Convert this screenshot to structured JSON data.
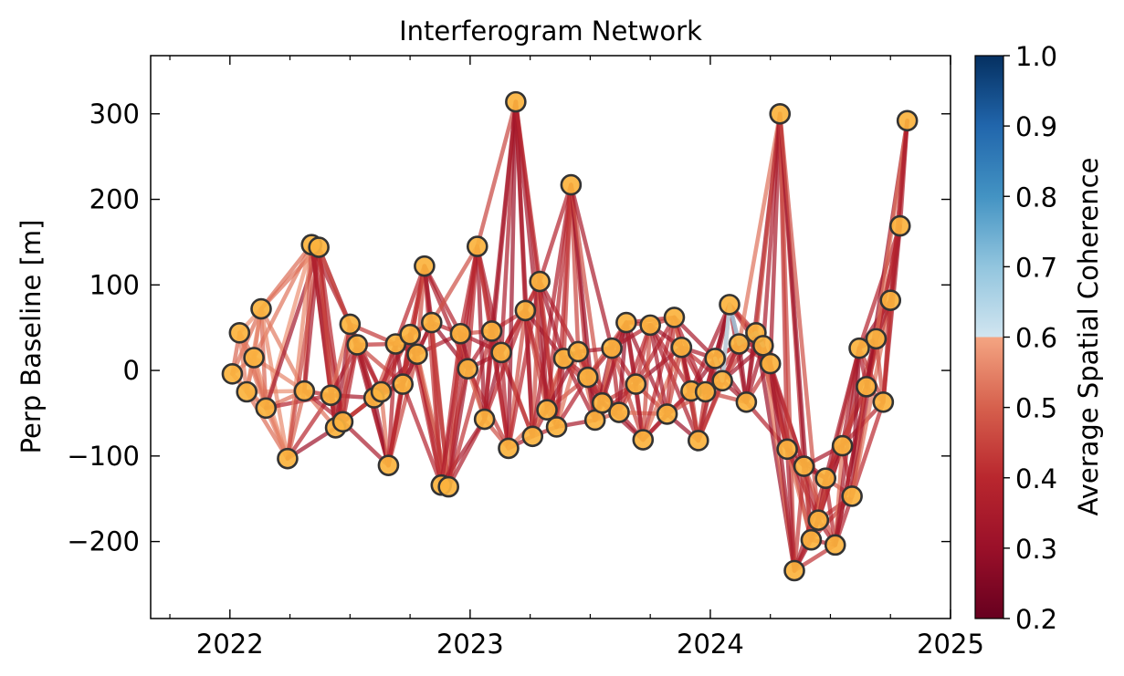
{
  "chart_data": {
    "type": "scatter",
    "title": "Interferogram Network",
    "xlabel": "",
    "ylabel": "Perp Baseline [m]",
    "xlim": [
      2021.67,
      2025.0
    ],
    "ylim": [
      -290,
      368
    ],
    "xticks": [
      2022,
      2023,
      2024,
      2025
    ],
    "yticks": [
      -200,
      -100,
      0,
      100,
      200,
      300
    ],
    "ytick_labels": [
      "−200",
      "−100",
      "0",
      "100",
      "200",
      "300"
    ],
    "grid": false,
    "colorbar": {
      "label": "Average Spatial Coherence",
      "range": [
        0.2,
        1.0
      ],
      "ticks": [
        "0.2",
        "0.3",
        "0.4",
        "0.5",
        "0.6",
        "0.7",
        "0.8",
        "0.9",
        "1.0"
      ],
      "colormap": "RdBu",
      "display_gap": [
        0.7,
        1.0
      ],
      "colors": {
        "low": "#67001f",
        "mid": "#b2182b",
        "pink": "#f4a582",
        "light_blue": "#d1e5f0",
        "blue": "#4393c3",
        "high": "#053061"
      }
    },
    "marker": {
      "fill": "#fbb33e",
      "edge": "#333333"
    },
    "acquisitions": [
      {
        "t": 2022.01,
        "b": -4
      },
      {
        "t": 2022.04,
        "b": 44
      },
      {
        "t": 2022.07,
        "b": -25
      },
      {
        "t": 2022.1,
        "b": 15
      },
      {
        "t": 2022.13,
        "b": 72
      },
      {
        "t": 2022.15,
        "b": -44
      },
      {
        "t": 2022.24,
        "b": -103
      },
      {
        "t": 2022.31,
        "b": -24
      },
      {
        "t": 2022.34,
        "b": 147
      },
      {
        "t": 2022.37,
        "b": 144
      },
      {
        "t": 2022.42,
        "b": -29
      },
      {
        "t": 2022.44,
        "b": -67
      },
      {
        "t": 2022.47,
        "b": -60
      },
      {
        "t": 2022.5,
        "b": 54
      },
      {
        "t": 2022.53,
        "b": 30
      },
      {
        "t": 2022.6,
        "b": -32
      },
      {
        "t": 2022.63,
        "b": -25
      },
      {
        "t": 2022.66,
        "b": -111
      },
      {
        "t": 2022.69,
        "b": 31
      },
      {
        "t": 2022.72,
        "b": -16
      },
      {
        "t": 2022.75,
        "b": 42
      },
      {
        "t": 2022.78,
        "b": 19
      },
      {
        "t": 2022.81,
        "b": 122
      },
      {
        "t": 2022.84,
        "b": 56
      },
      {
        "t": 2022.88,
        "b": -134
      },
      {
        "t": 2022.91,
        "b": -136
      },
      {
        "t": 2022.96,
        "b": 43
      },
      {
        "t": 2022.99,
        "b": 2
      },
      {
        "t": 2023.03,
        "b": 145
      },
      {
        "t": 2023.06,
        "b": -57
      },
      {
        "t": 2023.09,
        "b": 46
      },
      {
        "t": 2023.13,
        "b": 21
      },
      {
        "t": 2023.16,
        "b": -91
      },
      {
        "t": 2023.19,
        "b": 314
      },
      {
        "t": 2023.23,
        "b": 70
      },
      {
        "t": 2023.26,
        "b": -77
      },
      {
        "t": 2023.29,
        "b": 104
      },
      {
        "t": 2023.32,
        "b": -46
      },
      {
        "t": 2023.36,
        "b": -66
      },
      {
        "t": 2023.39,
        "b": 14
      },
      {
        "t": 2023.42,
        "b": 217
      },
      {
        "t": 2023.45,
        "b": 22
      },
      {
        "t": 2023.49,
        "b": -8
      },
      {
        "t": 2023.52,
        "b": -58
      },
      {
        "t": 2023.55,
        "b": -38
      },
      {
        "t": 2023.59,
        "b": 26
      },
      {
        "t": 2023.62,
        "b": -49
      },
      {
        "t": 2023.65,
        "b": 56
      },
      {
        "t": 2023.69,
        "b": -16
      },
      {
        "t": 2023.72,
        "b": -81
      },
      {
        "t": 2023.75,
        "b": 53
      },
      {
        "t": 2023.82,
        "b": -51
      },
      {
        "t": 2023.85,
        "b": 62
      },
      {
        "t": 2023.88,
        "b": 27
      },
      {
        "t": 2023.92,
        "b": -24
      },
      {
        "t": 2023.95,
        "b": -82
      },
      {
        "t": 2023.98,
        "b": -25
      },
      {
        "t": 2024.02,
        "b": 14
      },
      {
        "t": 2024.05,
        "b": -12
      },
      {
        "t": 2024.08,
        "b": 77
      },
      {
        "t": 2024.12,
        "b": 31
      },
      {
        "t": 2024.15,
        "b": -37
      },
      {
        "t": 2024.19,
        "b": 44
      },
      {
        "t": 2024.22,
        "b": 29
      },
      {
        "t": 2024.25,
        "b": 8
      },
      {
        "t": 2024.29,
        "b": 300
      },
      {
        "t": 2024.32,
        "b": -92
      },
      {
        "t": 2024.35,
        "b": -234
      },
      {
        "t": 2024.39,
        "b": -112
      },
      {
        "t": 2024.42,
        "b": -198
      },
      {
        "t": 2024.45,
        "b": -175
      },
      {
        "t": 2024.48,
        "b": -126
      },
      {
        "t": 2024.52,
        "b": -204
      },
      {
        "t": 2024.55,
        "b": -88
      },
      {
        "t": 2024.59,
        "b": -147
      },
      {
        "t": 2024.62,
        "b": 26
      },
      {
        "t": 2024.65,
        "b": -19
      },
      {
        "t": 2024.69,
        "b": 37
      },
      {
        "t": 2024.72,
        "b": -37
      },
      {
        "t": 2024.75,
        "b": 82
      },
      {
        "t": 2024.79,
        "b": 169
      },
      {
        "t": 2024.82,
        "b": 292
      }
    ],
    "pairs": {
      "rule": "each acquisition linked to the next 5 acquisitions",
      "coherence_pattern": [
        0.33,
        0.38,
        0.36,
        0.42,
        0.45,
        0.39,
        0.31,
        0.47,
        0.35,
        0.4,
        0.55,
        0.37,
        0.34,
        0.43
      ],
      "early_high_coherence": {
        "before": 2022.25,
        "range": [
          0.52,
          0.66
        ]
      },
      "high_coherence_pairs": [
        {
          "from": 2024.08,
          "to": 2024.05,
          "coherence": 0.74
        },
        {
          "from": 2024.08,
          "to": 2024.12,
          "coherence": 0.78
        },
        {
          "from": 2024.12,
          "to": 2024.19,
          "coherence": 0.82
        },
        {
          "from": 2024.19,
          "to": 2024.22,
          "coherence": 0.8
        },
        {
          "from": 2024.05,
          "to": 2024.02,
          "coherence": 0.72
        }
      ]
    }
  }
}
